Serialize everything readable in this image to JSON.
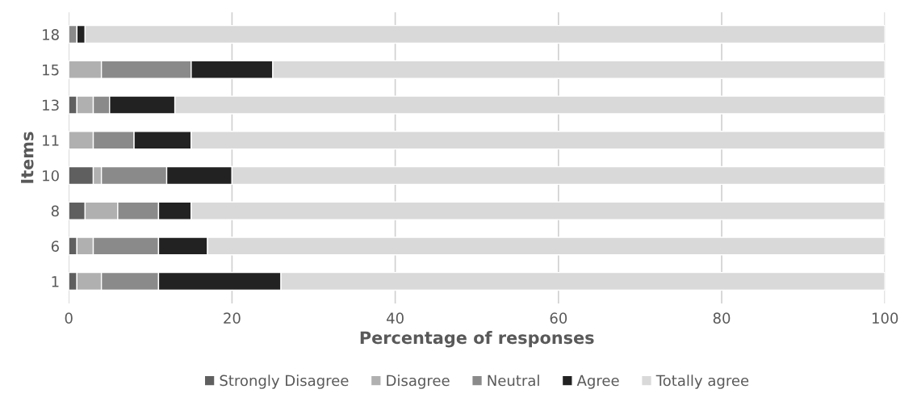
{
  "chart_data": {
    "type": "bar",
    "orientation": "horizontal",
    "stacked": true,
    "xlabel": "Percentage of responses",
    "ylabel": "Items",
    "categories": [
      "18",
      "15",
      "13",
      "11",
      "10",
      "8",
      "6",
      "1"
    ],
    "series": [
      {
        "name": "Strongly Disagree",
        "color": "#5f5f5f",
        "values": [
          0,
          0,
          1,
          0,
          3,
          2,
          1,
          1
        ]
      },
      {
        "name": "Disagree",
        "color": "#b0b0b0",
        "values": [
          0,
          4,
          2,
          3,
          1,
          4,
          2,
          3
        ]
      },
      {
        "name": "Neutral",
        "color": "#8a8a8a",
        "values": [
          1,
          11,
          2,
          5,
          8,
          5,
          8,
          7
        ]
      },
      {
        "name": "Agree",
        "color": "#222222",
        "values": [
          1,
          10,
          8,
          7,
          8,
          4,
          6,
          15
        ]
      },
      {
        "name": "Totally agree",
        "color": "#d9d9d9",
        "values": [
          98,
          75,
          87,
          85,
          80,
          85,
          83,
          74
        ]
      }
    ],
    "xlim": [
      0,
      100
    ],
    "xticks": [
      0,
      20,
      40,
      60,
      80,
      100
    ],
    "grid": "x",
    "legend": "bottom"
  }
}
